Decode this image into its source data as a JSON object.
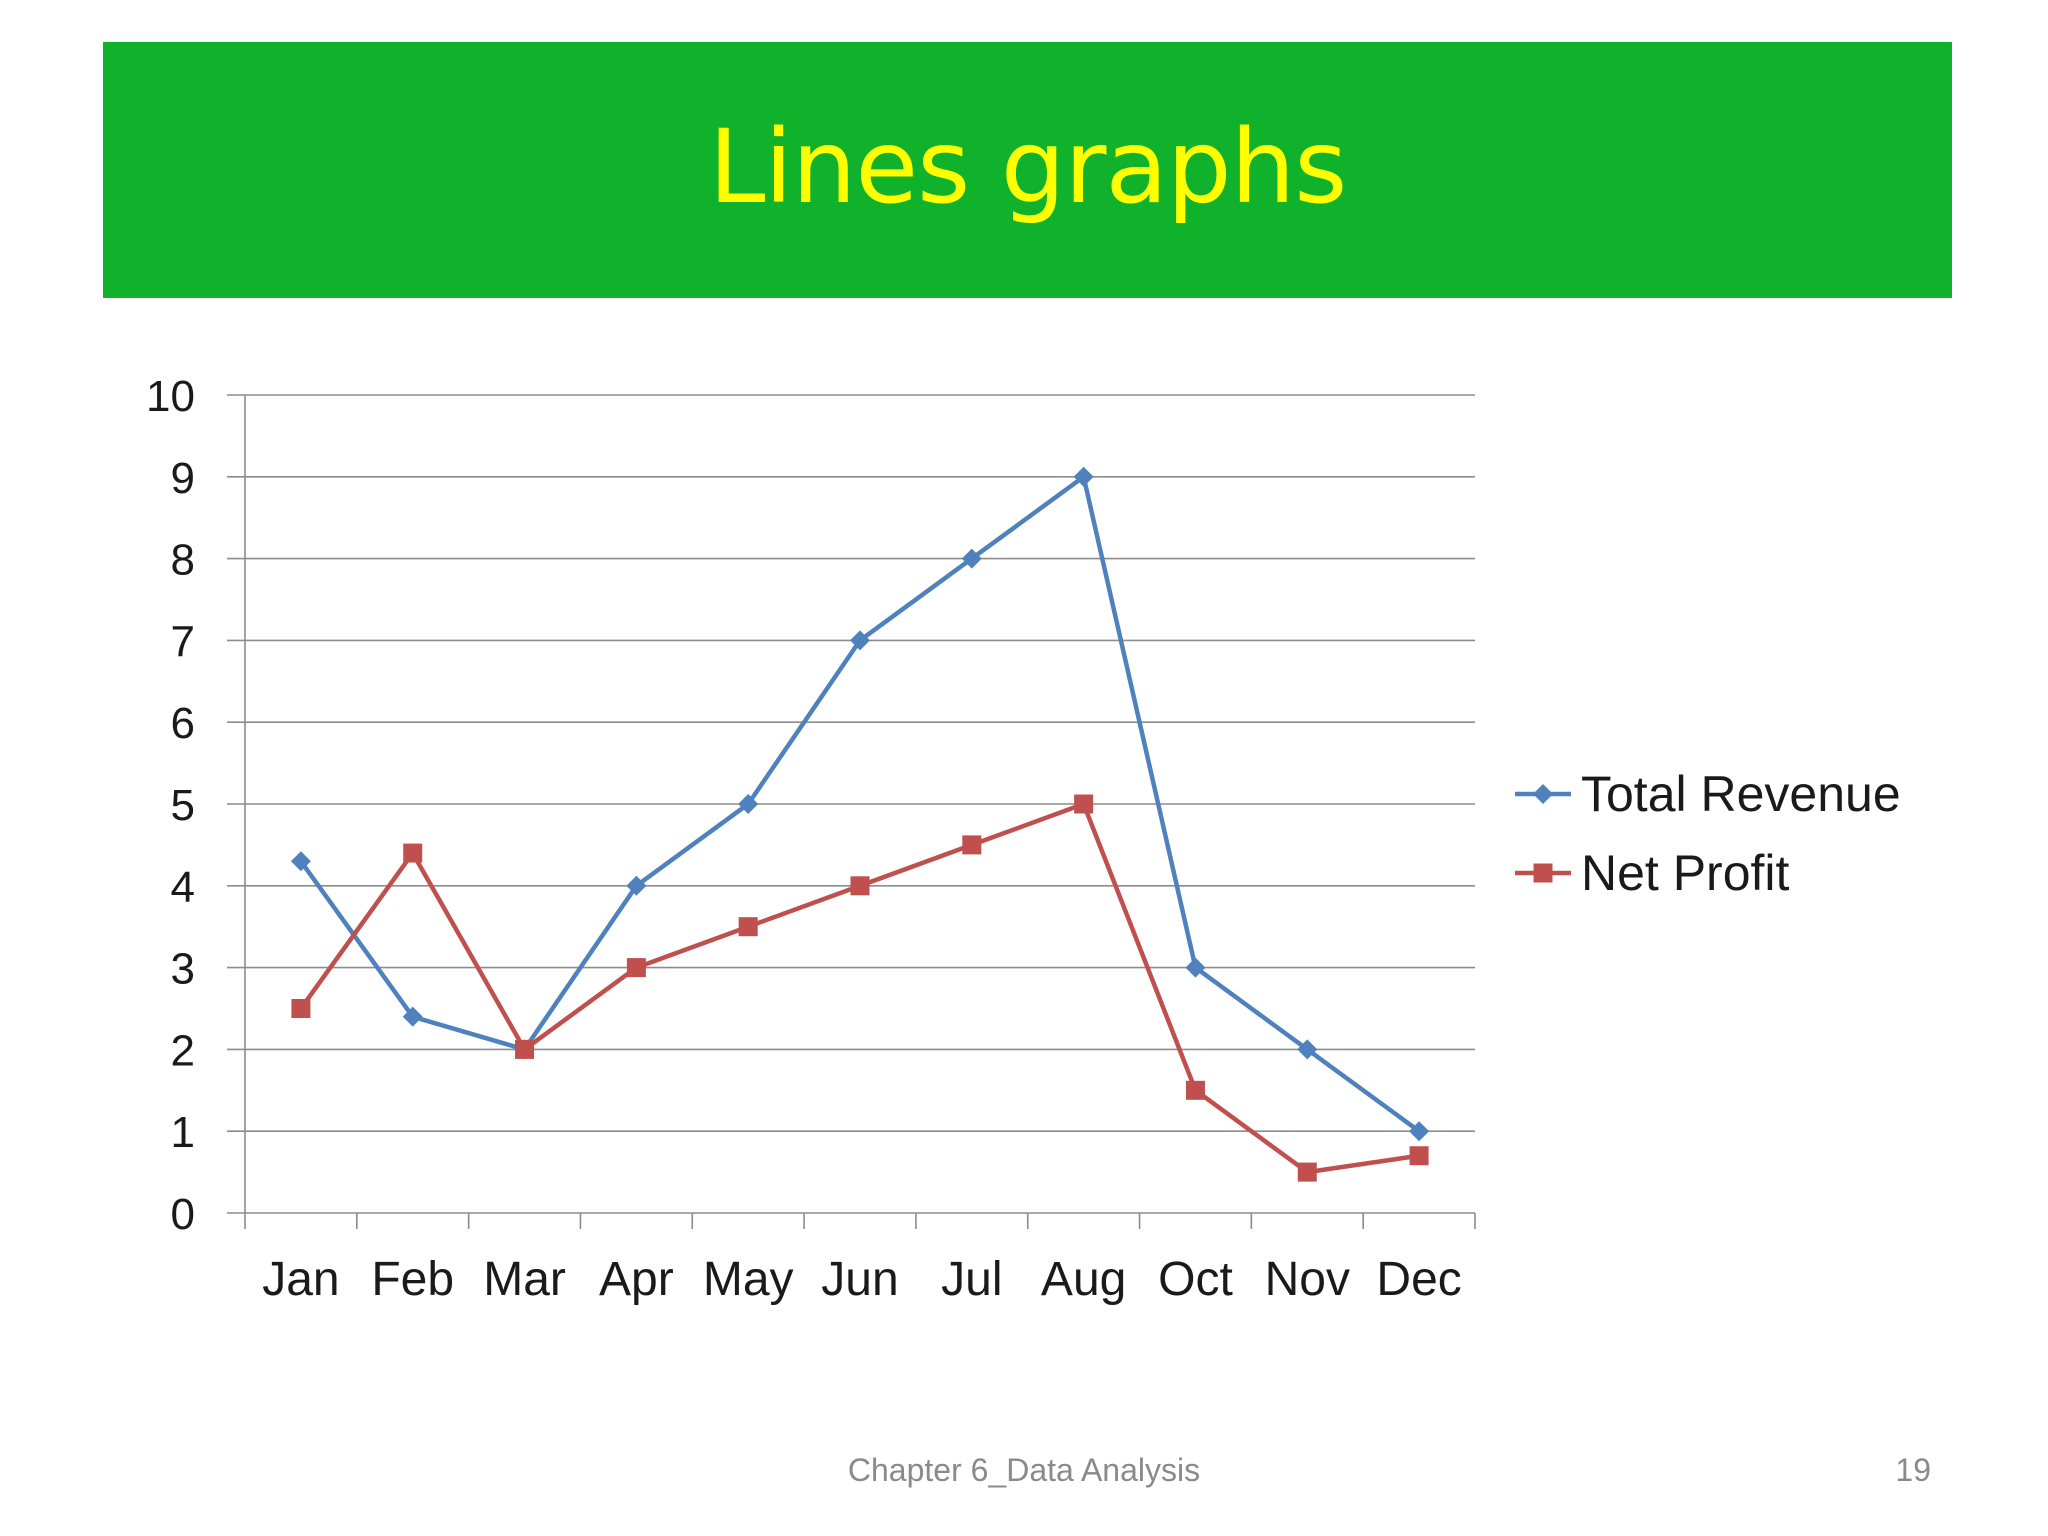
{
  "slide": {
    "title": "Lines graphs",
    "footer": "Chapter 6_Data Analysis",
    "page_number": "19",
    "banner_color": "#10b22c",
    "title_color": "#ffff00"
  },
  "chart_data": {
    "type": "line",
    "title": "",
    "xlabel": "",
    "ylabel": "",
    "categories": [
      "Jan",
      "Feb",
      "Mar",
      "Apr",
      "May",
      "Jun",
      "Jul",
      "Aug",
      "Oct",
      "Nov",
      "Dec"
    ],
    "ylim": [
      0,
      10
    ],
    "yticks": [
      0,
      1,
      2,
      3,
      4,
      5,
      6,
      7,
      8,
      9,
      10
    ],
    "grid": true,
    "legend_position": "right",
    "series": [
      {
        "name": "Total Revenue",
        "color": "#4f81bd",
        "marker": "diamond",
        "values": [
          4.3,
          2.4,
          2,
          4,
          5,
          7,
          8,
          9,
          3,
          2,
          1
        ]
      },
      {
        "name": "Net Profit",
        "color": "#c0504d",
        "marker": "square",
        "values": [
          2.5,
          4.4,
          2,
          3,
          3.5,
          4,
          4.5,
          5,
          1.5,
          0.5,
          0.7
        ]
      }
    ]
  }
}
